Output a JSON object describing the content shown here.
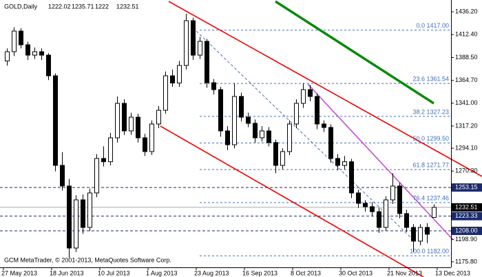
{
  "chart_data": {
    "type": "candlestick",
    "symbol": "GOLD,Daily",
    "footer": "GCM MetaTrader, © 2001-2013, MetaQuotes Software Corp.",
    "dates": [
      "27 May 2013",
      "18 Jun 2013",
      "10 Jul 2013",
      "1 Aug 2013",
      "23 Aug 2013",
      "16 Sep 2013",
      "8 Oct 2013",
      "30 Oct 2013",
      "21 Nov 2013",
      "13 Dec 2013"
    ],
    "candles": [
      [
        1385,
        1398,
        1380,
        1394.6
      ],
      [
        1394.6,
        1420,
        1390,
        1416.1
      ],
      [
        1416.1,
        1419,
        1398,
        1401.8
      ],
      [
        1401.8,
        1405,
        1386,
        1391.0
      ],
      [
        1391.0,
        1399,
        1387,
        1394.6
      ],
      [
        1394.6,
        1398,
        1386,
        1391.0
      ],
      [
        1391.0,
        1393,
        1365,
        1369.5
      ],
      [
        1369.5,
        1372,
        1270,
        1276.2
      ],
      [
        1276.2,
        1290,
        1250,
        1254.7
      ],
      [
        1254.7,
        1262,
        1180,
        1190.1
      ],
      [
        1190.1,
        1245,
        1186,
        1240.3
      ],
      [
        1240.3,
        1246,
        1205,
        1211.6
      ],
      [
        1211.6,
        1252,
        1208,
        1247.5
      ],
      [
        1247.5,
        1288,
        1243,
        1283.4
      ],
      [
        1283.4,
        1296,
        1275,
        1280.0
      ],
      [
        1280.0,
        1310,
        1276,
        1304.9
      ],
      [
        1304.9,
        1348,
        1300,
        1340.8
      ],
      [
        1340.8,
        1345,
        1308,
        1312.1
      ],
      [
        1312.1,
        1331,
        1308,
        1326.4
      ],
      [
        1326.4,
        1330,
        1300,
        1304.9
      ],
      [
        1304.9,
        1309,
        1286,
        1290.6
      ],
      [
        1290.6,
        1323,
        1287,
        1319.3
      ],
      [
        1319.3,
        1338,
        1315,
        1333.6
      ],
      [
        1333.6,
        1374,
        1330,
        1369.5
      ],
      [
        1369.5,
        1376,
        1358,
        1362.0
      ],
      [
        1362.0,
        1385,
        1358,
        1380.3
      ],
      [
        1380.3,
        1434,
        1376,
        1426.9
      ],
      [
        1426.9,
        1430,
        1386,
        1391.0
      ],
      [
        1391.0,
        1410,
        1387,
        1405.4
      ],
      [
        1405.4,
        1408,
        1357,
        1362.3
      ],
      [
        1362.3,
        1366,
        1350,
        1355.1
      ],
      [
        1355.1,
        1358,
        1306,
        1312.1
      ],
      [
        1312.1,
        1317,
        1292,
        1297.7
      ],
      [
        1297.7,
        1362,
        1294,
        1348.0
      ],
      [
        1348.0,
        1352,
        1322,
        1326.4
      ],
      [
        1326.4,
        1331,
        1316,
        1320.0
      ],
      [
        1320.0,
        1324,
        1300,
        1304.9
      ],
      [
        1304.9,
        1317,
        1301,
        1312.1
      ],
      [
        1312.1,
        1316,
        1296,
        1300.0
      ],
      [
        1300.0,
        1303,
        1268,
        1276.2
      ],
      [
        1276.2,
        1294,
        1272,
        1290.6
      ],
      [
        1290.6,
        1323,
        1287,
        1319.3
      ],
      [
        1319.3,
        1345,
        1315,
        1340.8
      ],
      [
        1340.8,
        1362,
        1336,
        1355.1
      ],
      [
        1355.1,
        1360,
        1343,
        1348.0
      ],
      [
        1348.0,
        1351,
        1314,
        1319.3
      ],
      [
        1319.3,
        1323,
        1311,
        1315.7
      ],
      [
        1315.7,
        1319,
        1279,
        1283.4
      ],
      [
        1283.4,
        1288,
        1271,
        1276.2
      ],
      [
        1276.2,
        1286,
        1272,
        1280.0
      ],
      [
        1280.0,
        1283,
        1242,
        1247.5
      ],
      [
        1247.5,
        1251,
        1232,
        1236.7
      ],
      [
        1236.7,
        1240,
        1228,
        1233.2
      ],
      [
        1233.2,
        1238,
        1223,
        1228.0
      ],
      [
        1228.0,
        1232,
        1206,
        1211.6
      ],
      [
        1211.6,
        1244,
        1208,
        1240.3
      ],
      [
        1240.3,
        1268,
        1236,
        1254.7
      ],
      [
        1254.7,
        1258,
        1221,
        1226.0
      ],
      [
        1226.0,
        1230,
        1207,
        1211.6
      ],
      [
        1211.6,
        1215,
        1186,
        1197.3
      ],
      [
        1197.3,
        1215,
        1193,
        1211.6
      ],
      [
        1211.6,
        1216,
        1195,
        1204.5
      ],
      [
        1222.02,
        1235.71,
        1222.0,
        1232.51
      ]
    ],
    "ylim": [
      1170,
      1447
    ],
    "yticks": [
      {
        "value": 1436.2,
        "label": "1436.20"
      },
      {
        "value": 1412.4,
        "label": "1412.40"
      },
      {
        "value": 1388.5,
        "label": "1388.50"
      },
      {
        "value": 1364.7,
        "label": "1364.70"
      },
      {
        "value": 1341.0,
        "label": "1341.00"
      },
      {
        "value": 1317.2,
        "label": "1317.20"
      },
      {
        "value": 1294.1,
        "label": "1294.10"
      },
      {
        "value": 1270.3,
        "label": "1270.30"
      },
      {
        "value": 1198.9,
        "label": "1198.90"
      },
      {
        "value": 1175.8,
        "label": "1175.80"
      }
    ],
    "fib_levels": [
      {
        "value": 1417.0,
        "label": "0.0 1417.00"
      },
      {
        "value": 1361.54,
        "label": "23.6 1361.54"
      },
      {
        "value": 1327.23,
        "label": "38.2 1327.23"
      },
      {
        "value": 1299.5,
        "label": "50.0 1299.50"
      },
      {
        "value": 1271.77,
        "label": "61.8 1271.77"
      },
      {
        "value": 1237.46,
        "label": "76.4 1237.46"
      },
      {
        "value": 1182.0,
        "label": "100.0 1182.00"
      }
    ],
    "price_lines": [
      1253.15,
      1223.33,
      {
        "value": 1208.0,
        "label": "1208.00"
      }
    ],
    "current_price": 1232.51,
    "fib_color": "#3f6fb5",
    "box_color": "#1a2a6a"
  }
}
